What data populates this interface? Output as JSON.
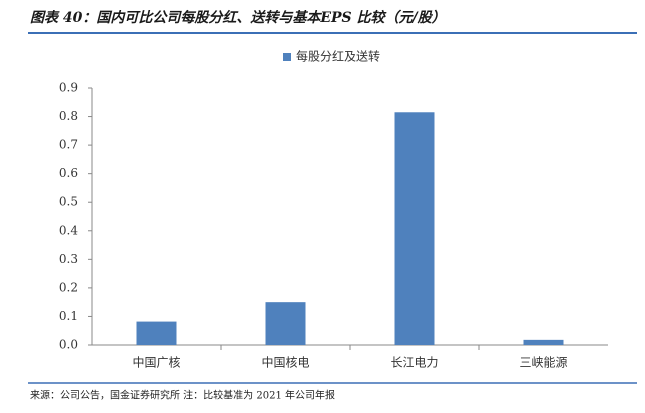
{
  "chart_data": {
    "type": "bar",
    "title": "图表 40：国内可比公司每股分红、送转与基本EPS 比较（元/股）",
    "series": [
      {
        "name": "每股分红及送转",
        "color": "#4f81bd",
        "values": [
          0.082,
          0.15,
          0.815,
          0.018
        ]
      }
    ],
    "categories": [
      "中国广核",
      "中国核电",
      "长江电力",
      "三峡能源"
    ],
    "ylim": [
      0,
      0.9
    ],
    "yticks": [
      {
        "value": 0,
        "label": "0.0"
      },
      0.1,
      0.2,
      0.3,
      0.4,
      0.5,
      0.6,
      0.7,
      0.8,
      0.9
    ],
    "legend": "top",
    "source": "来源：公司公告，国金证券研究所 注：比较基准为 2021 年公司年报"
  }
}
